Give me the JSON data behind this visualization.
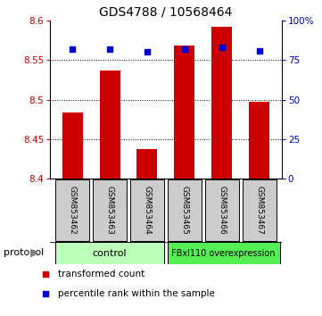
{
  "title": "GDS4788 / 10568464",
  "samples": [
    "GSM853462",
    "GSM853463",
    "GSM853464",
    "GSM853465",
    "GSM853466",
    "GSM853467"
  ],
  "red_values": [
    8.484,
    8.537,
    8.437,
    8.568,
    8.592,
    8.497
  ],
  "blue_values": [
    82,
    82,
    80,
    82,
    83,
    81
  ],
  "ylim_left": [
    8.4,
    8.6
  ],
  "ylim_right": [
    0,
    100
  ],
  "yticks_left": [
    8.4,
    8.45,
    8.5,
    8.55,
    8.6
  ],
  "yticks_right": [
    0,
    25,
    50,
    75,
    100
  ],
  "ytick_labels_right": [
    "0",
    "25",
    "50",
    "75",
    "100%"
  ],
  "bar_color": "#cc0000",
  "dot_color": "#0000cc",
  "bar_bottom": 8.4,
  "control_label": "control",
  "overexp_label": "FBxl110 overexpression",
  "protocol_label": "protocol",
  "legend_red": "transformed count",
  "legend_blue": "percentile rank within the sample",
  "control_color": "#bbffbb",
  "overexp_color": "#55ee55",
  "sample_bg_color": "#cccccc",
  "title_fontsize": 10,
  "tick_fontsize": 7.5,
  "legend_fontsize": 7.5,
  "sample_fontsize": 6.5,
  "protocol_fontsize": 8
}
